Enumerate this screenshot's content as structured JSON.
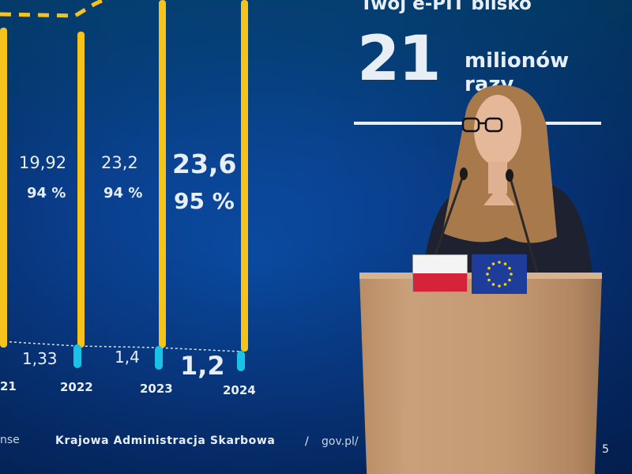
{
  "slide": {
    "headline": "Twój e-PIT blisko",
    "big_number": "21",
    "unit_line1": "milionów",
    "unit_line2": "razy",
    "values_top": [
      "19,92",
      "23,2",
      "23,6"
    ],
    "percents": [
      "94 %",
      "94 %",
      "95 %"
    ],
    "values_bottom": [
      "1,33",
      "1,4",
      "1,2"
    ],
    "years": [
      "21",
      "2022",
      "2023",
      "2024"
    ],
    "footer_fragment": "nse",
    "footer_org": "Krajowa Administracja Skarbowa",
    "footer_sep": "/",
    "footer_url": "gov.pl/",
    "page_number": "5",
    "colors": {
      "bar": "#f6c21c",
      "bar_base": "#19c3e8",
      "background": "#0a3f8e"
    }
  },
  "podium": {
    "flags": [
      "poland-flag",
      "eu-flag"
    ]
  }
}
